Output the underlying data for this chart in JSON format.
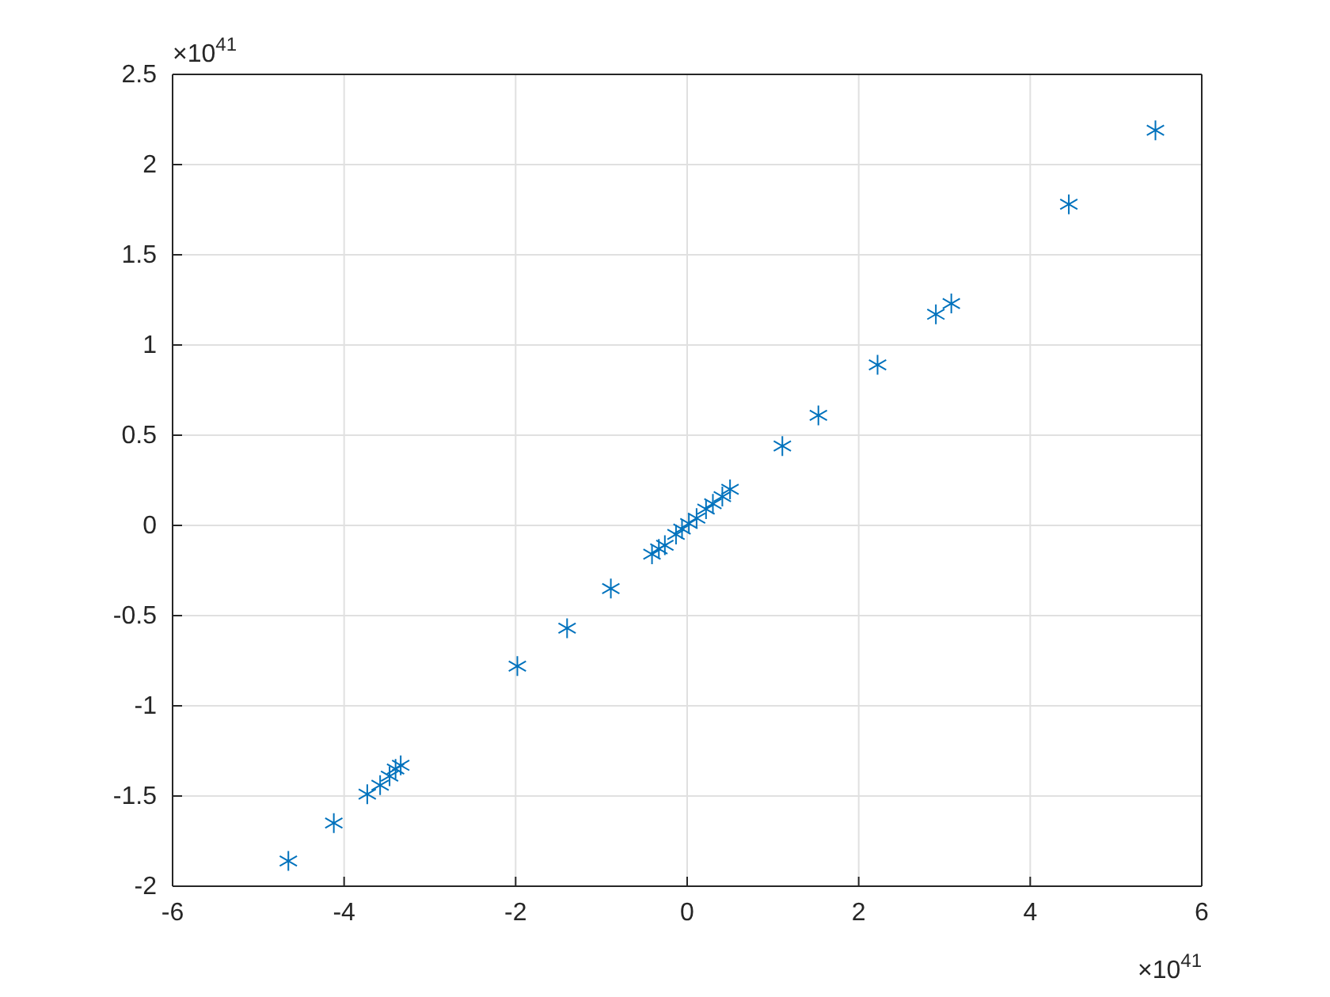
{
  "chart_data": {
    "type": "scatter",
    "marker": "cross",
    "grid": true,
    "xlim": [
      -6,
      6
    ],
    "xticks": [
      -6,
      -4,
      -2,
      0,
      2,
      4,
      6
    ],
    "ylim": [
      -2,
      2.5
    ],
    "yticks": [
      -2,
      -1.5,
      -1,
      -0.5,
      0,
      0.5,
      1,
      1.5,
      2,
      2.5
    ],
    "annotations": [
      "×10$^{41}$",
      "×10$^{41}$"
    ],
    "series": [
      {
        "color": "#0072bd",
        "x": [
          -4.65,
          -4.12,
          -3.73,
          -3.58,
          -3.47,
          -3.4,
          -3.34,
          -1.98,
          -1.4,
          -0.89,
          -0.41,
          -0.33,
          -0.26,
          -0.13,
          -0.06,
          0.02,
          0.11,
          0.22,
          0.3,
          0.41,
          0.5,
          1.11,
          1.53,
          2.22,
          2.9,
          3.08,
          4.45,
          5.46
        ],
        "values": [
          -1.86,
          -1.65,
          -1.49,
          -1.44,
          -1.39,
          -1.35,
          -1.33,
          -0.78,
          -0.57,
          -0.35,
          -0.16,
          -0.13,
          -0.11,
          -0.05,
          -0.02,
          0.01,
          0.04,
          0.09,
          0.12,
          0.16,
          0.2,
          0.44,
          0.61,
          0.89,
          1.17,
          1.23,
          1.78,
          2.19
        ]
      }
    ]
  }
}
